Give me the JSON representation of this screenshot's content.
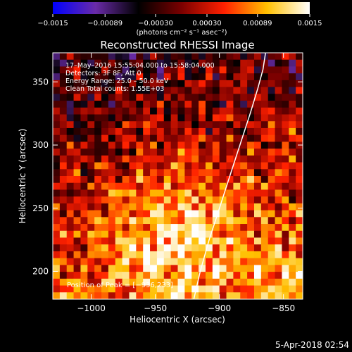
{
  "chart_data": {
    "type": "heatmap",
    "title": "Reconstructed RHESSI Image",
    "xlabel": "Heliocentric X (arcsec)",
    "ylabel": "Heliocentric Y (arcsec)",
    "xlim": [
      -1030,
      -835
    ],
    "ylim": [
      178,
      373
    ],
    "x_ticks": [
      -1000,
      -950,
      -900,
      -850
    ],
    "x_tick_labels": [
      "−1000",
      "−950",
      "−900",
      "−850"
    ],
    "y_ticks": [
      200,
      250,
      300,
      350
    ],
    "y_tick_labels": [
      "200",
      "250",
      "300",
      "350"
    ],
    "colorbar": {
      "min": -0.0015,
      "max": 0.0015,
      "ticks": [
        -0.0015,
        -0.00089,
        -0.0003,
        0.0003,
        0.00089,
        0.0015
      ],
      "tick_labels": [
        "−0.0015",
        "−0.00089",
        "−0.00030",
        "0.00030",
        "0.00089",
        "0.0015"
      ],
      "unit_label": "(photons cm⁻² s⁻¹ asec⁻²)",
      "colors": [
        "#0000ff",
        "#6a2ba8",
        "#000000",
        "#7a0000",
        "#ff2000",
        "#ffc000",
        "#ffffff"
      ]
    },
    "annotations": [
      "17–May–2016 15:55:04.000 to 15:58:04.000",
      "Detectors: 3F 8F, Att 0",
      "Energy Range: 25.0 – 50.0 keV",
      "Clean     Total counts: 1.55E+03"
    ],
    "peak_label": "Position of Peak = [−936,233]",
    "peak": [
      -936,
      233
    ],
    "limb_curve": {
      "x": [
        -920,
        -915,
        -908,
        -900,
        -892,
        -884,
        -876,
        -870,
        -866,
        -864
      ],
      "y": [
        178,
        200,
        225,
        250,
        275,
        300,
        325,
        345,
        360,
        373
      ]
    }
  },
  "footer": {
    "timestamp": "5-Apr-2018 02:54"
  }
}
